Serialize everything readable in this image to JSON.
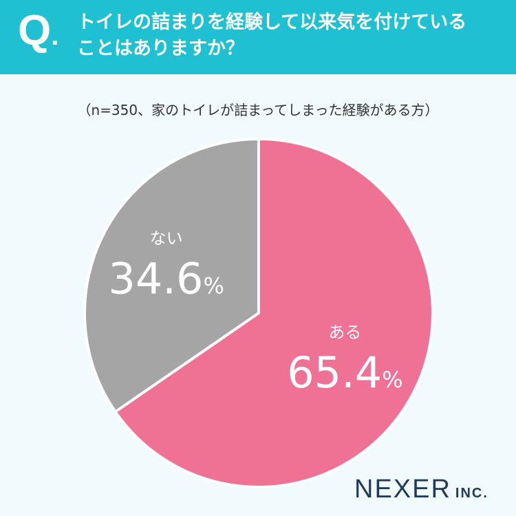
{
  "header": {
    "q_letter": "Q",
    "q_dot": ".",
    "question_line1": "トイレの詰まりを経験して以来気を付けている",
    "question_line2": "ことはありますか？"
  },
  "subtitle": "（n=350、家のトイレが詰まってしまった経験がある方）",
  "chart_data": {
    "type": "pie",
    "categories": [
      "ある",
      "ない"
    ],
    "values": [
      65.4,
      34.6
    ],
    "unit": "%",
    "colors": [
      "#ef7194",
      "#a5a5a5"
    ],
    "start": "12 o'clock, clockwise"
  },
  "logo": {
    "main": "NEXER",
    "sub": "INC."
  }
}
